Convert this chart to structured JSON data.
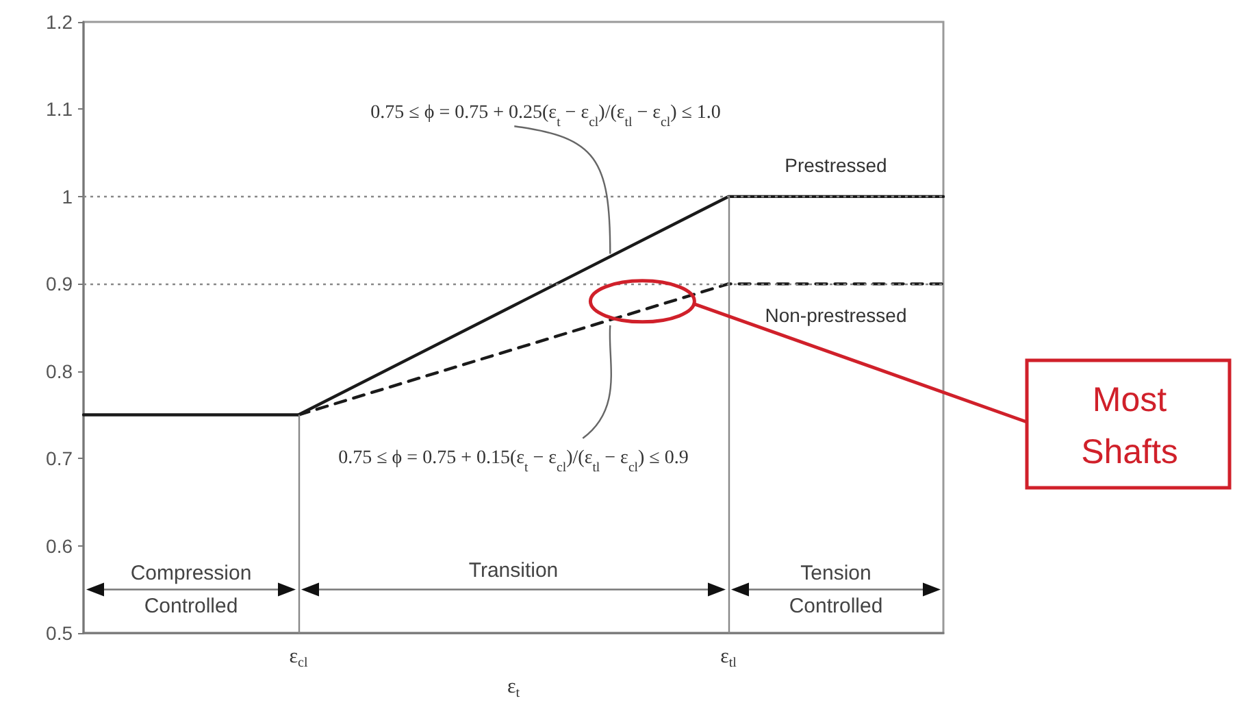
{
  "chart_data": {
    "type": "line",
    "categories": [
      null,
      "ε$_{cl}$",
      null,
      "ε$_{tl}$",
      null
    ],
    "series": [
      {
        "name": "Prestressed",
        "color": "#1a1a1a",
        "values": [
          0.75,
          0.75,
          0.875,
          1,
          1
        ],
        "line_style": "solid"
      },
      {
        "name": "Non-prestressed",
        "color": "#1a1a1a",
        "values": [
          null,
          0.75,
          0.825,
          0.9,
          0.9
        ],
        "line_style": "dashed"
      }
    ],
    "xlabel": "ε$_{t}$",
    "ylim": [
      0.5,
      1.2
    ],
    "yticks": [
      0.5,
      0.6,
      0.7,
      0.8,
      0.9,
      1,
      1.1,
      1.2
    ],
    "grid": false,
    "legend": false,
    "marker": "none",
    "ref_lines": [
      {
        "axis": "y",
        "value": 1,
        "color": "#888888",
        "line_style": "dotted"
      },
      {
        "axis": "y",
        "value": 0.9,
        "color": "#888888",
        "line_style": "dotted"
      },
      {
        "axis": "x",
        "value": "ε$_{cl}$",
        "color": "#888888",
        "line_style": "solid"
      },
      {
        "axis": "x",
        "value": "ε$_{tl}$",
        "color": "#888888",
        "line_style": "solid"
      }
    ],
    "annotations": [
      "0.75 ≤ ϕ = 0.75 + 0.25(ε$_{t}$ − ε$_{cl}$)/(ε$_{tl}$ − ε$_{cl}$) ≤ 1.0",
      "0.75 ≤ ϕ = 0.75 + 0.15(ε$_{t}$ − ε$_{cl}$)/(ε$_{tl}$ − ε$_{cl}$) ≤ 0.9",
      "Compression Controlled",
      "Transition",
      "Tension Controlled",
      "Most Shafts"
    ]
  }
}
